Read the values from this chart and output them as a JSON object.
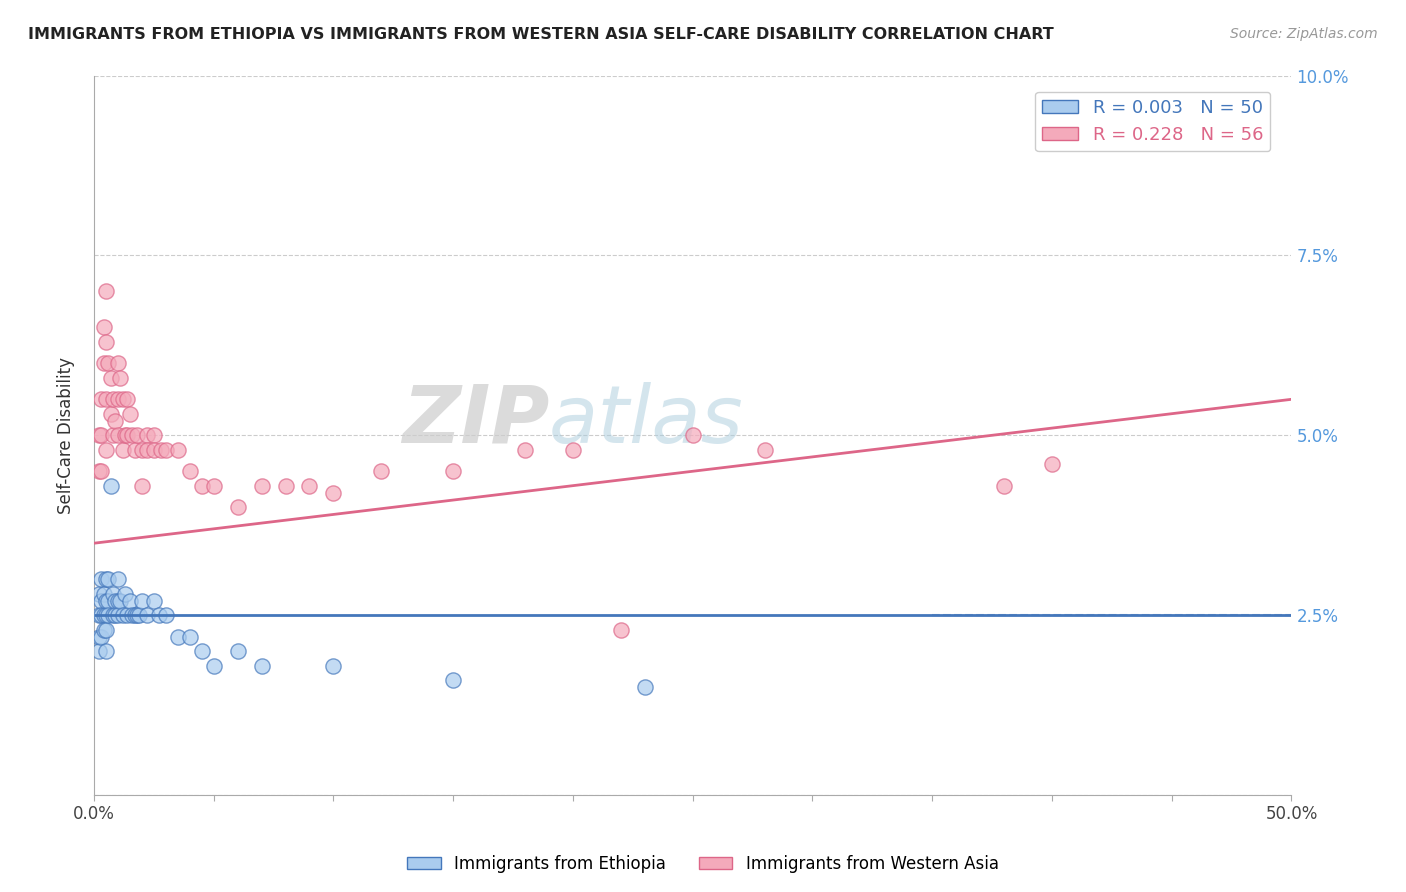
{
  "title": "IMMIGRANTS FROM ETHIOPIA VS IMMIGRANTS FROM WESTERN ASIA SELF-CARE DISABILITY CORRELATION CHART",
  "source": "Source: ZipAtlas.com",
  "ylabel": "Self-Care Disability",
  "xmin": 0.0,
  "xmax": 0.5,
  "ymin": 0.0,
  "ymax": 0.1,
  "xticks": [
    0.0,
    0.05,
    0.1,
    0.15,
    0.2,
    0.25,
    0.3,
    0.35,
    0.4,
    0.45,
    0.5
  ],
  "yticks": [
    0.0,
    0.025,
    0.05,
    0.075,
    0.1
  ],
  "ytick_labels": [
    "",
    "2.5%",
    "5.0%",
    "7.5%",
    "10.0%"
  ],
  "xtick_labels_show": [
    "0.0%",
    "50.0%"
  ],
  "legend_r1": "R = 0.003",
  "legend_n1": "N = 50",
  "legend_r2": "R = 0.228",
  "legend_n2": "N = 56",
  "ethiopia_color": "#aaccee",
  "western_asia_color": "#f4aabb",
  "ethiopia_line_color": "#4477bb",
  "western_asia_line_color": "#dd6688",
  "watermark_zip": "ZIP",
  "watermark_atlas": "atlas",
  "eth_line_start_y": 0.025,
  "eth_line_end_y": 0.025,
  "wa_line_start_y": 0.035,
  "wa_line_end_y": 0.055,
  "ethiopia_scatter": [
    [
      0.002,
      0.028
    ],
    [
      0.002,
      0.025
    ],
    [
      0.002,
      0.022
    ],
    [
      0.002,
      0.02
    ],
    [
      0.003,
      0.03
    ],
    [
      0.003,
      0.027
    ],
    [
      0.003,
      0.025
    ],
    [
      0.003,
      0.022
    ],
    [
      0.004,
      0.028
    ],
    [
      0.004,
      0.025
    ],
    [
      0.004,
      0.023
    ],
    [
      0.005,
      0.03
    ],
    [
      0.005,
      0.027
    ],
    [
      0.005,
      0.025
    ],
    [
      0.005,
      0.023
    ],
    [
      0.005,
      0.02
    ],
    [
      0.006,
      0.03
    ],
    [
      0.006,
      0.027
    ],
    [
      0.006,
      0.025
    ],
    [
      0.007,
      0.043
    ],
    [
      0.008,
      0.028
    ],
    [
      0.008,
      0.025
    ],
    [
      0.009,
      0.027
    ],
    [
      0.009,
      0.025
    ],
    [
      0.01,
      0.03
    ],
    [
      0.01,
      0.027
    ],
    [
      0.01,
      0.025
    ],
    [
      0.011,
      0.027
    ],
    [
      0.012,
      0.025
    ],
    [
      0.013,
      0.028
    ],
    [
      0.014,
      0.025
    ],
    [
      0.015,
      0.027
    ],
    [
      0.016,
      0.025
    ],
    [
      0.017,
      0.025
    ],
    [
      0.018,
      0.025
    ],
    [
      0.019,
      0.025
    ],
    [
      0.02,
      0.027
    ],
    [
      0.022,
      0.025
    ],
    [
      0.025,
      0.027
    ],
    [
      0.027,
      0.025
    ],
    [
      0.03,
      0.025
    ],
    [
      0.035,
      0.022
    ],
    [
      0.04,
      0.022
    ],
    [
      0.045,
      0.02
    ],
    [
      0.05,
      0.018
    ],
    [
      0.06,
      0.02
    ],
    [
      0.07,
      0.018
    ],
    [
      0.1,
      0.018
    ],
    [
      0.15,
      0.016
    ],
    [
      0.23,
      0.015
    ]
  ],
  "western_asia_scatter": [
    [
      0.002,
      0.05
    ],
    [
      0.002,
      0.045
    ],
    [
      0.003,
      0.055
    ],
    [
      0.003,
      0.05
    ],
    [
      0.003,
      0.045
    ],
    [
      0.004,
      0.065
    ],
    [
      0.004,
      0.06
    ],
    [
      0.005,
      0.07
    ],
    [
      0.005,
      0.063
    ],
    [
      0.005,
      0.055
    ],
    [
      0.005,
      0.048
    ],
    [
      0.006,
      0.06
    ],
    [
      0.007,
      0.058
    ],
    [
      0.007,
      0.053
    ],
    [
      0.008,
      0.055
    ],
    [
      0.008,
      0.05
    ],
    [
      0.009,
      0.052
    ],
    [
      0.01,
      0.06
    ],
    [
      0.01,
      0.055
    ],
    [
      0.01,
      0.05
    ],
    [
      0.011,
      0.058
    ],
    [
      0.012,
      0.055
    ],
    [
      0.012,
      0.048
    ],
    [
      0.013,
      0.05
    ],
    [
      0.014,
      0.055
    ],
    [
      0.014,
      0.05
    ],
    [
      0.015,
      0.053
    ],
    [
      0.016,
      0.05
    ],
    [
      0.017,
      0.048
    ],
    [
      0.018,
      0.05
    ],
    [
      0.02,
      0.048
    ],
    [
      0.02,
      0.043
    ],
    [
      0.022,
      0.05
    ],
    [
      0.022,
      0.048
    ],
    [
      0.025,
      0.05
    ],
    [
      0.025,
      0.048
    ],
    [
      0.028,
      0.048
    ],
    [
      0.03,
      0.048
    ],
    [
      0.035,
      0.048
    ],
    [
      0.04,
      0.045
    ],
    [
      0.045,
      0.043
    ],
    [
      0.05,
      0.043
    ],
    [
      0.06,
      0.04
    ],
    [
      0.07,
      0.043
    ],
    [
      0.08,
      0.043
    ],
    [
      0.09,
      0.043
    ],
    [
      0.1,
      0.042
    ],
    [
      0.12,
      0.045
    ],
    [
      0.15,
      0.045
    ],
    [
      0.18,
      0.048
    ],
    [
      0.2,
      0.048
    ],
    [
      0.22,
      0.023
    ],
    [
      0.25,
      0.05
    ],
    [
      0.28,
      0.048
    ],
    [
      0.38,
      0.043
    ],
    [
      0.4,
      0.046
    ]
  ]
}
